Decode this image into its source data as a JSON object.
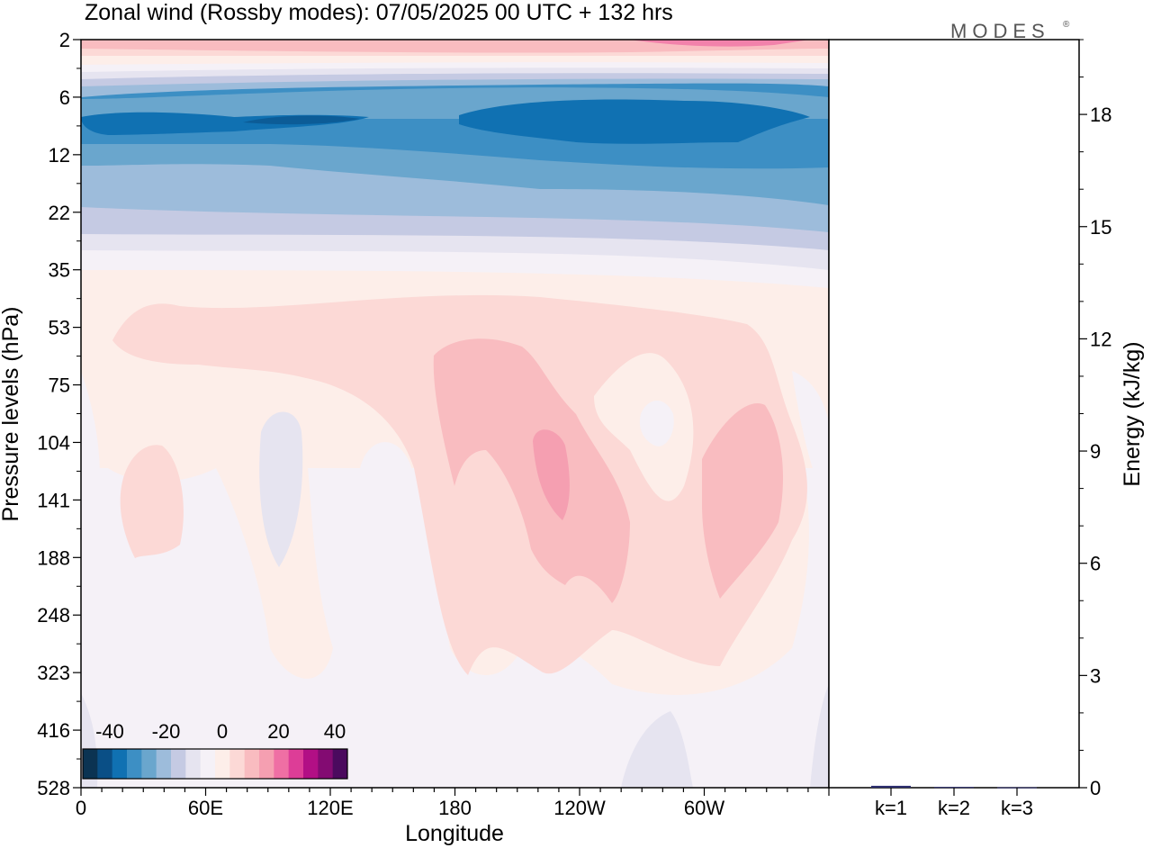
{
  "chart_data": [
    {
      "type": "heatmap",
      "title": "Zonal wind (Rossby modes):  07/05/2025  00 UTC  + 132 hrs",
      "xlabel": "Longitude",
      "ylabel": "Pressure levels (hPa)",
      "x_ticks": [
        "0",
        "60E",
        "120E",
        "180",
        "120W",
        "60W"
      ],
      "x_tick_degrees": [
        0,
        60,
        120,
        180,
        240,
        300
      ],
      "xlim": [
        0,
        360
      ],
      "y_ticks": [
        "2",
        "6",
        "12",
        "22",
        "35",
        "53",
        "75",
        "104",
        "141",
        "188",
        "248",
        "323",
        "416",
        "528"
      ],
      "y_scale": "log",
      "ylim": [
        528,
        2
      ],
      "colorbar": {
        "tick_labels": [
          "-40",
          "-20",
          "0",
          "20",
          "40"
        ],
        "colors": [
          "#0b3352",
          "#0a4f86",
          "#1071b2",
          "#3d8fc4",
          "#6aa6cd",
          "#9dbcdb",
          "#c5cae3",
          "#e6e4f0",
          "#f5f1f7",
          "#fdeee9",
          "#fcd9d6",
          "#f9bcc0",
          "#f59fb1",
          "#ef6fa4",
          "#dd3d97",
          "#b20f85",
          "#830b72",
          "#4b0a5e"
        ]
      }
    },
    {
      "type": "bar",
      "categories": [
        "k=1",
        "k=2",
        "k=3"
      ],
      "values": [
        0.05,
        0.02,
        0.01
      ],
      "ylabel": "Energy (kJ/kg)",
      "y_ticks": [
        "0",
        "3",
        "6",
        "9",
        "12",
        "15",
        "18"
      ],
      "ylim": [
        0,
        20
      ],
      "bar_color": "#2b2d6e"
    }
  ],
  "branding": {
    "logo_text": "MODES",
    "registered_mark": "®"
  }
}
